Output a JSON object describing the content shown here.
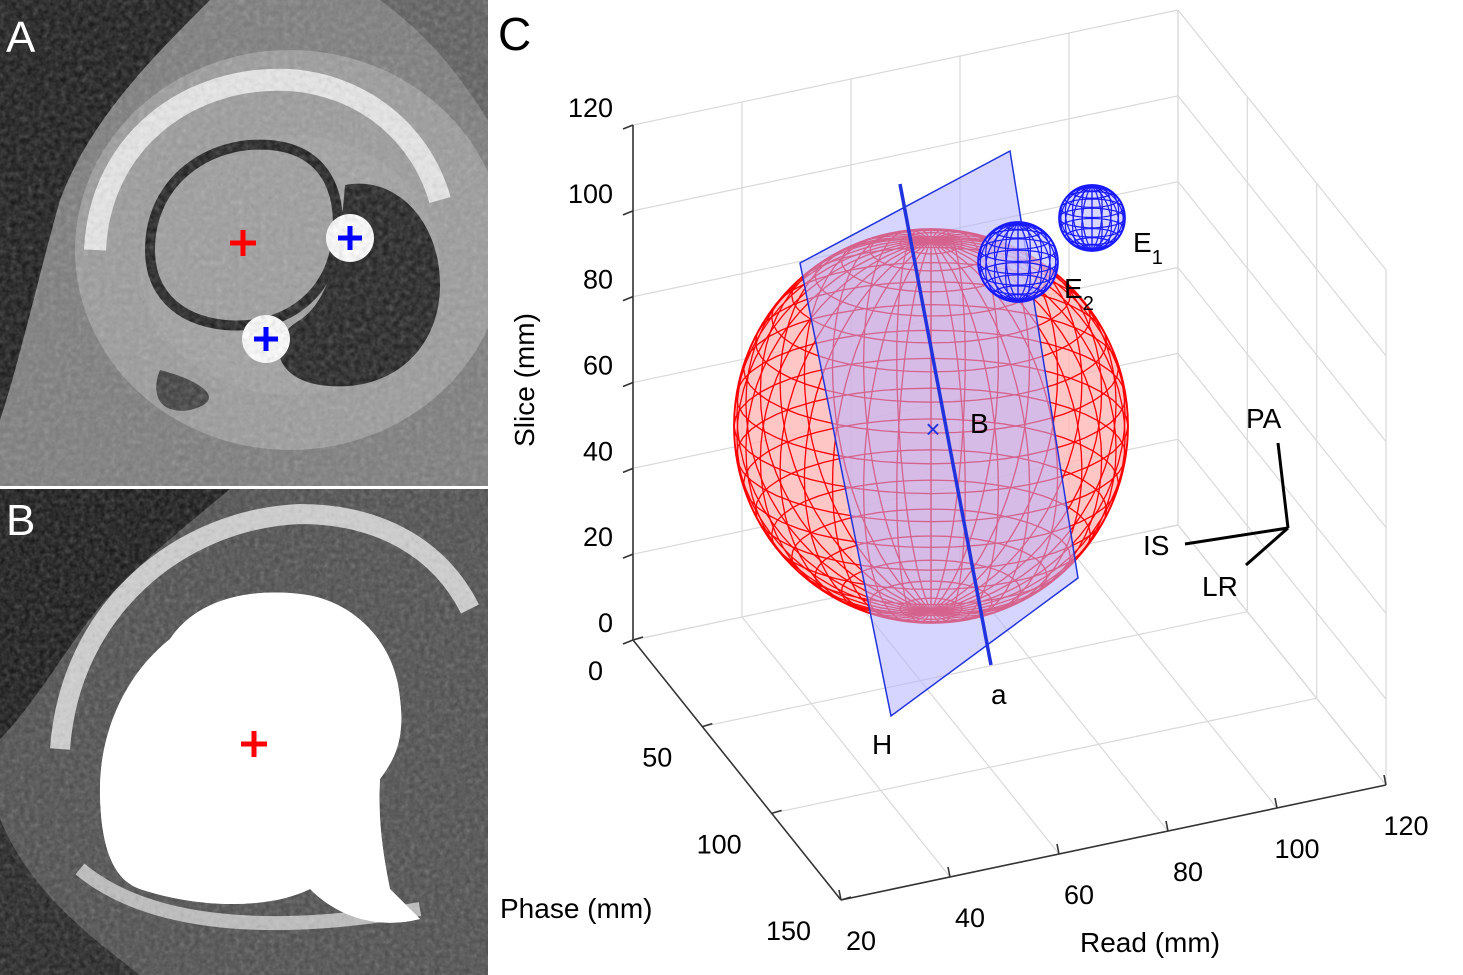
{
  "figure": {
    "panels": [
      {
        "letter": "A"
      },
      {
        "letter": "B"
      },
      {
        "letter": "C"
      }
    ]
  },
  "colors": {
    "sphere": "#ff0000",
    "sphere_fill": "#ffb3b3",
    "small_spheres": "#1a1aff",
    "plane_fill": "#b3b3ff",
    "plane_edge": "#2233dd",
    "grid": "#d9d9d9",
    "marker_red": "#ff0000",
    "marker_blue": "#0000ff"
  },
  "panel_a": {
    "markers": [
      {
        "color": "red",
        "symbol": "+"
      },
      {
        "color": "blue",
        "symbol": "+"
      },
      {
        "color": "blue",
        "symbol": "+"
      }
    ]
  },
  "panel_b": {
    "markers": [
      {
        "color": "red",
        "symbol": "+"
      }
    ]
  },
  "chart_data": {
    "type": "scatter",
    "title": "",
    "axes": {
      "z": {
        "label": "Slice (mm)",
        "ticks": [
          "0",
          "20",
          "40",
          "60",
          "80",
          "100",
          "120"
        ],
        "range": [
          0,
          120
        ]
      },
      "y": {
        "label": "Phase (mm)",
        "ticks": [
          "0",
          "50",
          "100",
          "150"
        ],
        "range": [
          0,
          150
        ]
      },
      "x": {
        "label": "Read (mm)",
        "ticks": [
          "20",
          "40",
          "60",
          "80",
          "100",
          "120"
        ],
        "range": [
          20,
          120
        ]
      }
    },
    "grid": true,
    "annotations": [
      {
        "text": "B"
      },
      {
        "text": "a"
      },
      {
        "text": "H"
      },
      {
        "text": "E",
        "subscript": "1"
      },
      {
        "text": "E",
        "subscript": "2"
      }
    ],
    "orientation": {
      "up": "PA",
      "left": "IS",
      "down": "LR"
    },
    "objects": [
      {
        "name": "large sphere",
        "color": "red",
        "type": "wireframe sphere"
      },
      {
        "name": "E1",
        "color": "blue",
        "type": "wireframe sphere"
      },
      {
        "name": "E2",
        "color": "blue",
        "type": "wireframe sphere"
      },
      {
        "name": "H",
        "color": "blue",
        "type": "plane"
      },
      {
        "name": "a",
        "color": "blue",
        "type": "axis line"
      }
    ]
  }
}
